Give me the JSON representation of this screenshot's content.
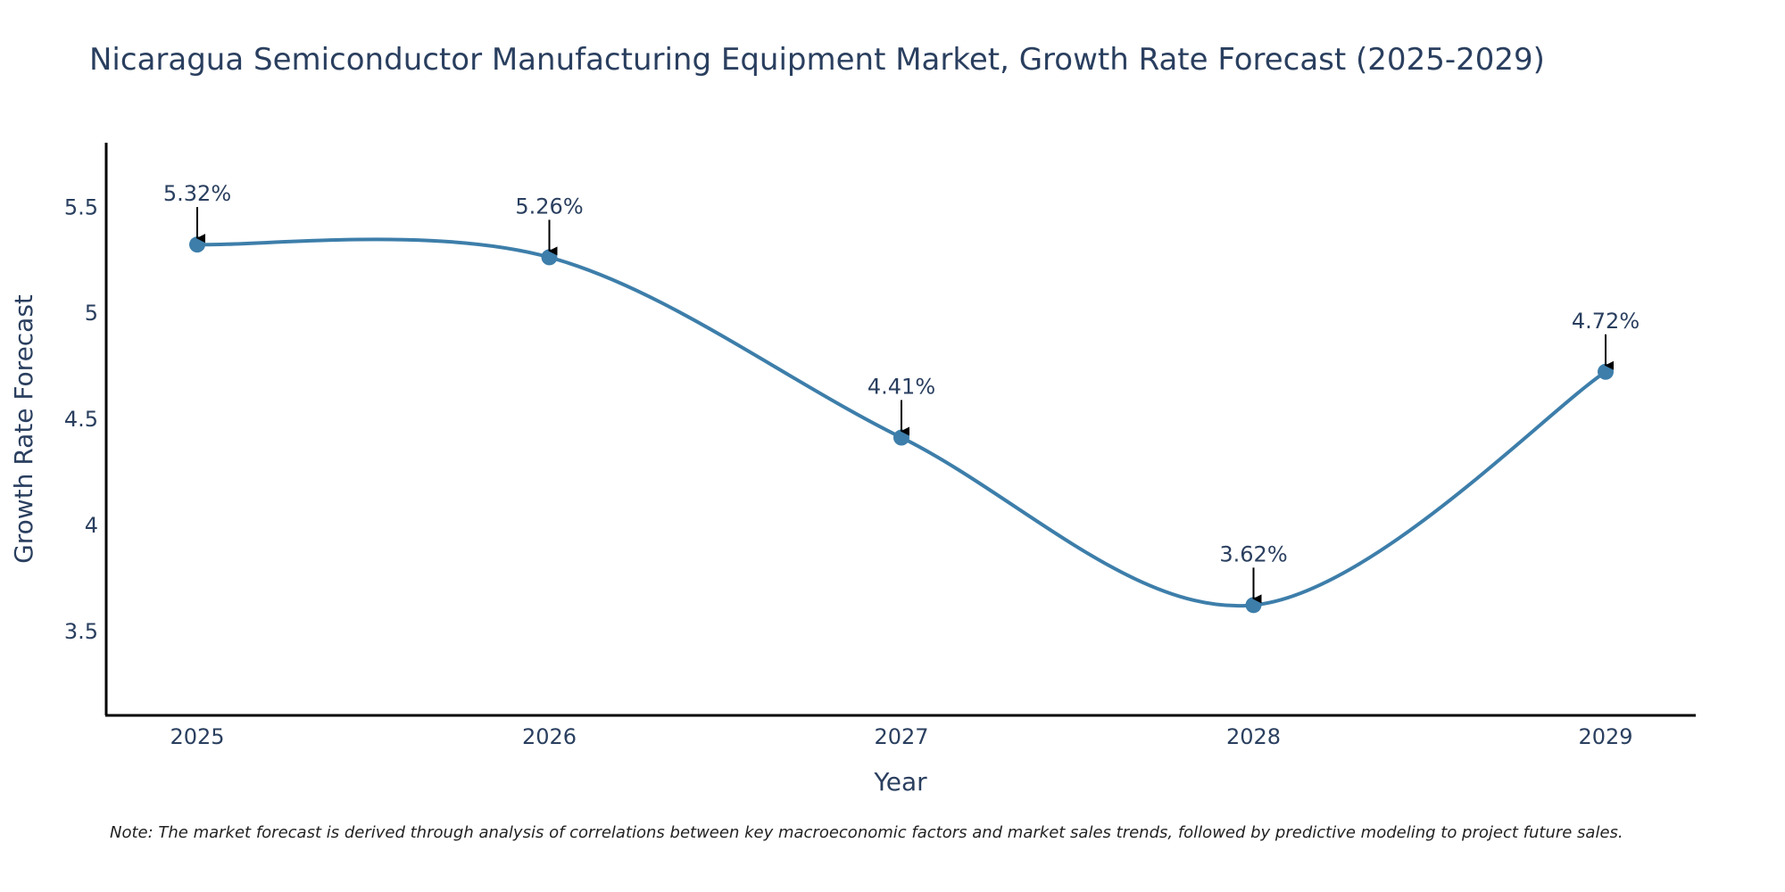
{
  "chart_data": {
    "type": "line",
    "title": "Nicaragua Semiconductor Manufacturing Equipment Market, Growth Rate Forecast (2025-2029)",
    "xlabel": "Year",
    "ylabel": "Growth Rate Forecast",
    "categories": [
      "2025",
      "2026",
      "2027",
      "2028",
      "2029"
    ],
    "values": [
      5.32,
      5.26,
      4.41,
      3.62,
      4.72
    ],
    "data_labels": [
      "5.32%",
      "5.26%",
      "4.41%",
      "3.62%",
      "4.72%"
    ],
    "ylim": [
      3.1,
      5.8
    ],
    "yticks": [
      3.5,
      4,
      4.5,
      5,
      5.5
    ],
    "ytick_labels": [
      "3.5",
      "4",
      "4.5",
      "5",
      "5.5"
    ],
    "grid": false,
    "line_shape": "spline",
    "line_color": "#3d7eaa",
    "marker_color": "#3d7eaa",
    "annotation_arrow_color": "#000000"
  },
  "note": "Note: The market forecast is derived through analysis of correlations between key macroeconomic factors and market sales trends, followed by predictive modeling to project future sales."
}
